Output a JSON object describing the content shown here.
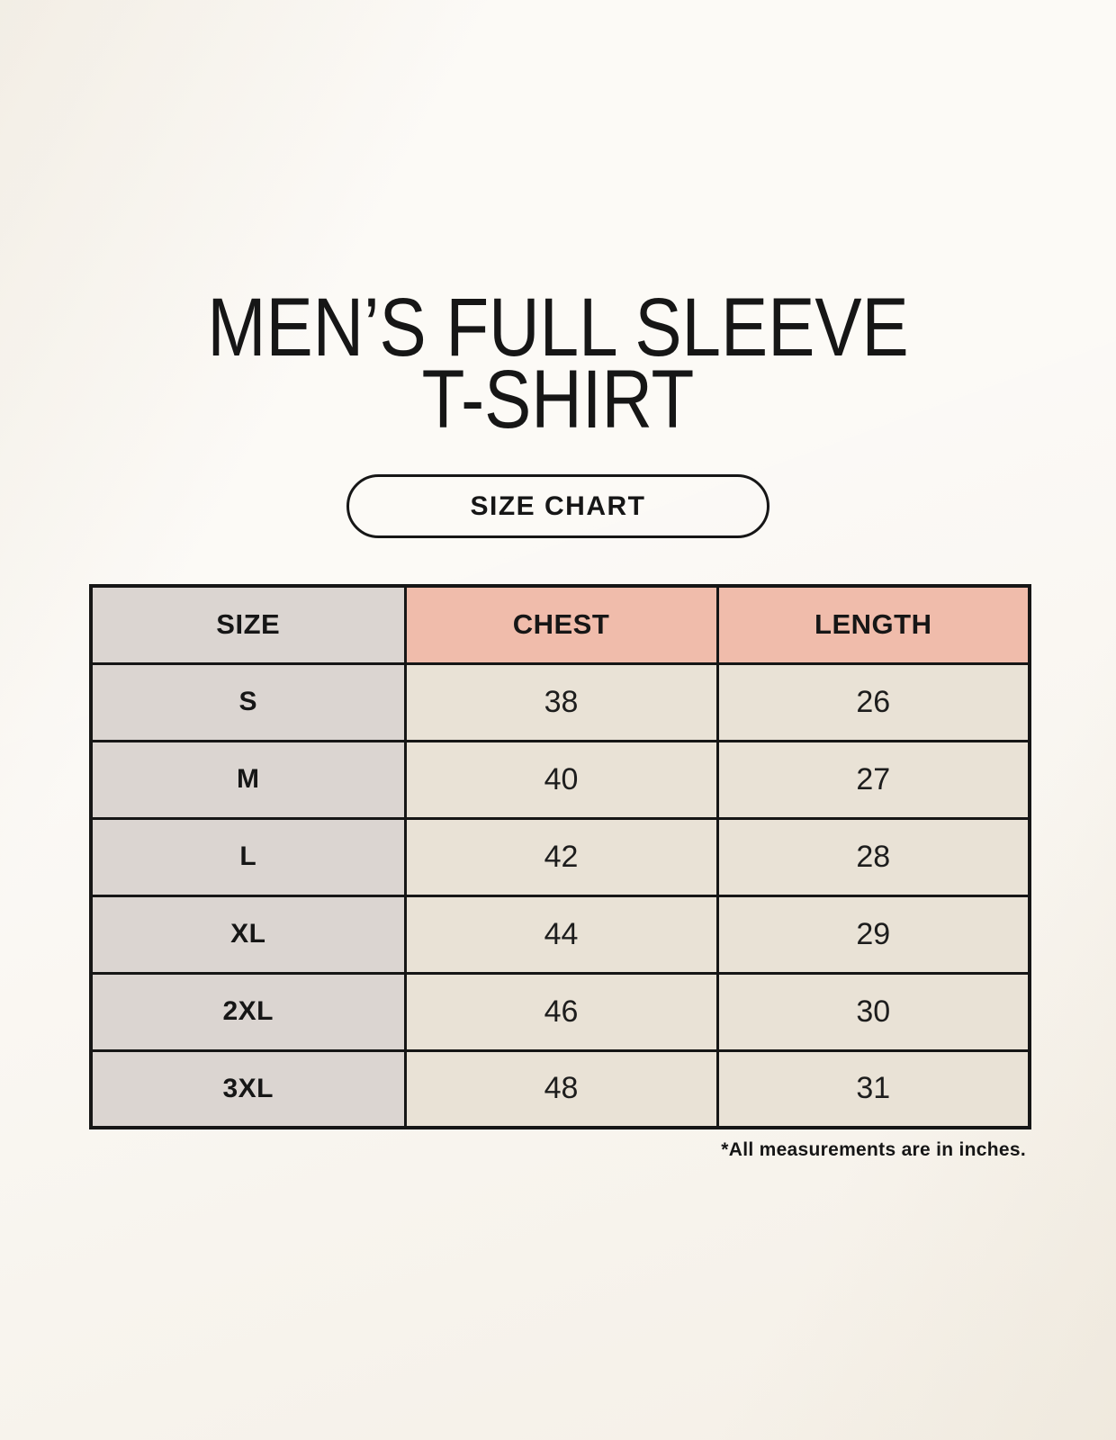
{
  "title": {
    "line1": "MEN’S FULL SLEEVE",
    "line2": "T-SHIRT"
  },
  "badge": {
    "label": "SIZE CHART"
  },
  "size_table": {
    "columns": [
      "SIZE",
      "CHEST",
      "LENGTH"
    ],
    "rows": [
      {
        "size": "S",
        "chest": "38",
        "length": "26"
      },
      {
        "size": "M",
        "chest": "40",
        "length": "27"
      },
      {
        "size": "L",
        "chest": "42",
        "length": "28"
      },
      {
        "size": "XL",
        "chest": "44",
        "length": "29"
      },
      {
        "size": "2XL",
        "chest": "46",
        "length": "30"
      },
      {
        "size": "3XL",
        "chest": "48",
        "length": "31"
      }
    ],
    "units_note": "*All measurements are in inches."
  },
  "colors": {
    "page_bg": "#f8f4ed",
    "size_col_bg": "#dbd5d1",
    "measure_header_bg": "#f0bcab",
    "value_cell_bg": "#e9e2d6",
    "border": "#161616",
    "text": "#161616"
  }
}
